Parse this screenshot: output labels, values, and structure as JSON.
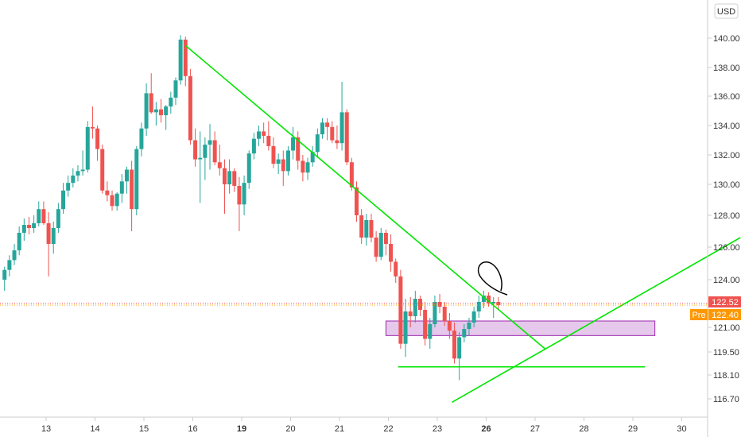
{
  "currency_button": {
    "label": "USD"
  },
  "price_tags": {
    "last": {
      "value": "122.52",
      "color": "#ef5350"
    },
    "pre": {
      "label": "Pre",
      "value": "122.40",
      "color": "#ff9800"
    }
  },
  "colors": {
    "up": "#26a69a",
    "down": "#ef5350",
    "trendline": "#00e600",
    "zone_fill": "#e1bee7",
    "zone_stroke": "#9c27b0",
    "axis_text": "#333333",
    "drawing": "#000000"
  },
  "chart_data": {
    "type": "candlestick",
    "symbol_currency": "USD",
    "y_axis": {
      "ticks": [
        "140.00",
        "138.00",
        "136.00",
        "134.00",
        "132.00",
        "130.00",
        "128.00",
        "126.00",
        "124.00",
        "121.00",
        "119.50",
        "118.10",
        "116.70"
      ],
      "tick_values": [
        140,
        138,
        136,
        134,
        132,
        130,
        128,
        126,
        124,
        121,
        119.5,
        118.1,
        116.7
      ]
    },
    "x_axis": {
      "labels": [
        "13",
        "14",
        "15",
        "16",
        "19",
        "20",
        "21",
        "22",
        "23",
        "26",
        "27",
        "28",
        "29",
        "30"
      ],
      "bold_labels": [
        "19",
        "26"
      ],
      "session_index": [
        -4,
        -3,
        -2,
        -1,
        0,
        1,
        2,
        3,
        4,
        5,
        6,
        7,
        8,
        9
      ]
    },
    "candles": [
      [
        -4.85,
        124,
        124.8,
        123.3,
        124.6
      ],
      [
        -4.75,
        124.6,
        125.5,
        124.2,
        125.2
      ],
      [
        -4.65,
        125.2,
        126.2,
        124.9,
        125.8
      ],
      [
        -4.55,
        125.8,
        127.3,
        125.5,
        126.9
      ],
      [
        -4.45,
        126.9,
        127.8,
        126.4,
        127.4
      ],
      [
        -4.35,
        127.4,
        127.9,
        126.8,
        127.2
      ],
      [
        -4.25,
        127.2,
        128.0,
        126.9,
        127.5
      ],
      [
        -4.15,
        127.5,
        128.9,
        127.3,
        128.4
      ],
      [
        -4.05,
        128.4,
        128.9,
        127.4,
        127.5
      ],
      [
        -3.95,
        127.5,
        128.2,
        124.2,
        126.2
      ],
      [
        -3.85,
        126.2,
        127.6,
        125.6,
        127.2
      ],
      [
        -3.75,
        127.2,
        128.8,
        126.9,
        128.4
      ],
      [
        -3.65,
        128.4,
        130.1,
        128.1,
        129.6
      ],
      [
        -3.55,
        129.6,
        130.6,
        129.2,
        130.1
      ],
      [
        -3.45,
        130.1,
        131.1,
        129.8,
        130.6
      ],
      [
        -3.35,
        130.6,
        131.3,
        130.2,
        130.9
      ],
      [
        -3.25,
        130.9,
        132.3,
        130.6,
        131.0
      ],
      [
        -3.15,
        131.0,
        134.3,
        130.8,
        133.9
      ],
      [
        -3.05,
        133.9,
        135.3,
        133.1,
        133.8
      ],
      [
        -2.95,
        133.8,
        134.0,
        131.6,
        132.4
      ],
      [
        -2.85,
        132.4,
        132.7,
        129.4,
        129.6
      ],
      [
        -2.75,
        129.6,
        130.2,
        128.9,
        129.3
      ],
      [
        -2.65,
        129.3,
        129.6,
        128.3,
        128.6
      ],
      [
        -2.55,
        128.6,
        129.5,
        128.3,
        129.4
      ],
      [
        -2.45,
        129.4,
        130.7,
        128.8,
        130.2
      ],
      [
        -2.35,
        130.2,
        131.2,
        129.4,
        131.0
      ],
      [
        -2.25,
        131.0,
        131.6,
        127.0,
        128.4
      ],
      [
        -2.15,
        128.4,
        132.6,
        128.0,
        132.4
      ],
      [
        -2.05,
        132.4,
        134.2,
        131.9,
        133.8
      ],
      [
        -1.95,
        133.8,
        136.9,
        133.3,
        136.2
      ],
      [
        -1.85,
        136.2,
        137.6,
        134.8,
        134.9
      ],
      [
        -1.75,
        134.9,
        135.6,
        134.0,
        135.1
      ],
      [
        -1.65,
        135.1,
        135.8,
        134.2,
        134.7
      ],
      [
        -1.55,
        134.7,
        135.4,
        133.7,
        135.3
      ],
      [
        -1.45,
        135.3,
        136.3,
        134.8,
        135.9
      ],
      [
        -1.35,
        135.9,
        137.3,
        135.4,
        137.1
      ],
      [
        -1.25,
        137.1,
        140.2,
        136.8,
        139.9
      ],
      [
        -1.15,
        139.9,
        140.1,
        136.7,
        137.4
      ],
      [
        -1.05,
        137.4,
        137.9,
        132.7,
        133.0
      ],
      [
        -0.95,
        133.0,
        133.8,
        131.2,
        131.7
      ],
      [
        -0.85,
        131.7,
        133.6,
        128.8,
        131.8
      ],
      [
        -0.75,
        131.8,
        133.2,
        130.3,
        132.7
      ],
      [
        -0.65,
        132.7,
        134.1,
        131.0,
        133.0
      ],
      [
        -0.55,
        133.0,
        133.6,
        131.3,
        131.5
      ],
      [
        -0.45,
        131.5,
        132.7,
        130.6,
        131.1
      ],
      [
        -0.35,
        131.1,
        131.7,
        128.1,
        130.0
      ],
      [
        -0.25,
        130.0,
        131.7,
        129.4,
        130.9
      ],
      [
        -0.15,
        130.9,
        131.1,
        129.5,
        129.9
      ],
      [
        -0.05,
        129.9,
        130.5,
        127.0,
        128.7
      ],
      [
        0.05,
        128.7,
        130.6,
        128.0,
        130.1
      ],
      [
        0.15,
        130.1,
        132.3,
        129.7,
        132.1
      ],
      [
        0.25,
        132.1,
        133.5,
        131.7,
        133.1
      ],
      [
        0.35,
        133.1,
        134.0,
        132.6,
        133.6
      ],
      [
        0.45,
        133.6,
        134.2,
        132.8,
        133.3
      ],
      [
        0.55,
        133.3,
        134.3,
        132.3,
        132.6
      ],
      [
        0.65,
        132.6,
        133.2,
        131.1,
        131.4
      ],
      [
        0.75,
        131.4,
        132.1,
        130.7,
        131.7
      ],
      [
        0.85,
        131.7,
        132.3,
        129.9,
        130.9
      ],
      [
        0.95,
        130.9,
        132.6,
        130.6,
        132.3
      ],
      [
        1.05,
        132.3,
        133.9,
        131.7,
        133.2
      ],
      [
        1.15,
        133.2,
        133.6,
        131.0,
        131.6
      ],
      [
        1.25,
        131.6,
        132.0,
        130.2,
        130.8
      ],
      [
        1.35,
        130.8,
        131.8,
        130.3,
        131.5
      ],
      [
        1.45,
        131.5,
        132.6,
        131.2,
        132.2
      ],
      [
        1.55,
        132.2,
        133.8,
        131.8,
        133.4
      ],
      [
        1.65,
        133.4,
        134.5,
        133.1,
        134.2
      ],
      [
        1.75,
        134.2,
        134.5,
        133.0,
        133.9
      ],
      [
        1.85,
        133.9,
        134.3,
        132.8,
        133.0
      ],
      [
        1.95,
        133.0,
        134.0,
        132.4,
        132.8
      ],
      [
        2.05,
        132.8,
        137.0,
        132.3,
        134.9
      ],
      [
        2.15,
        134.9,
        135.1,
        131.3,
        131.5
      ],
      [
        2.25,
        131.5,
        131.8,
        129.6,
        129.8
      ],
      [
        2.35,
        129.8,
        130.2,
        127.6,
        128.0
      ],
      [
        2.45,
        128.0,
        128.4,
        126.2,
        126.6
      ],
      [
        2.55,
        126.6,
        128.1,
        126.1,
        127.7
      ],
      [
        2.65,
        127.7,
        128.1,
        126.3,
        126.6
      ],
      [
        2.75,
        126.6,
        127.0,
        125.1,
        125.4
      ],
      [
        2.85,
        125.4,
        127.2,
        125.2,
        126.9
      ],
      [
        2.95,
        126.9,
        127.1,
        125.5,
        126.2
      ],
      [
        3.05,
        126.2,
        126.8,
        124.5,
        125.1
      ],
      [
        3.15,
        125.1,
        125.3,
        123.8,
        124.2
      ],
      [
        3.25,
        124.2,
        124.6,
        119.7,
        120.0
      ],
      [
        3.35,
        120.0,
        122.8,
        119.2,
        122.0
      ],
      [
        3.45,
        122.0,
        122.9,
        121.0,
        121.7
      ],
      [
        3.55,
        121.7,
        123.3,
        121.3,
        122.8
      ],
      [
        3.65,
        122.8,
        123.0,
        121.7,
        122.1
      ],
      [
        3.75,
        122.1,
        122.6,
        119.9,
        120.3
      ],
      [
        3.85,
        120.3,
        121.6,
        119.7,
        121.2
      ],
      [
        3.95,
        121.2,
        123.0,
        121.0,
        122.6
      ],
      [
        4.05,
        122.6,
        123.1,
        121.9,
        122.3
      ],
      [
        4.15,
        122.3,
        122.6,
        121.1,
        121.4
      ],
      [
        4.25,
        121.4,
        121.9,
        120.3,
        120.8
      ],
      [
        4.35,
        120.8,
        121.3,
        118.8,
        119.1
      ],
      [
        4.45,
        119.1,
        120.7,
        117.8,
        120.4
      ],
      [
        4.55,
        120.4,
        121.2,
        120.1,
        120.9
      ],
      [
        4.65,
        120.9,
        121.6,
        120.5,
        121.3
      ],
      [
        4.75,
        121.3,
        122.3,
        121.0,
        122.0
      ],
      [
        4.85,
        122.0,
        123.0,
        121.6,
        122.6
      ],
      [
        4.95,
        122.6,
        123.3,
        122.2,
        123.0
      ],
      [
        5.05,
        123.0,
        123.2,
        122.3,
        122.5
      ],
      [
        5.15,
        122.5,
        122.9,
        121.6,
        122.6
      ],
      [
        5.25,
        122.6,
        122.9,
        122.1,
        122.4
      ]
    ],
    "annotations": [
      {
        "kind": "trendline",
        "from": [
          -1.15,
          139.5
        ],
        "to": [
          6.2,
          119.7
        ]
      },
      {
        "kind": "trendline",
        "from": [
          3.2,
          118.6
        ],
        "to": [
          8.25,
          118.6
        ]
      },
      {
        "kind": "trendline",
        "from": [
          4.3,
          116.5
        ],
        "to": [
          10.2,
          126.6
        ]
      },
      {
        "kind": "rectangle",
        "from": [
          2.95,
          121.4
        ],
        "to": [
          8.45,
          120.5
        ]
      },
      {
        "kind": "brush",
        "shape": "loop"
      }
    ]
  }
}
